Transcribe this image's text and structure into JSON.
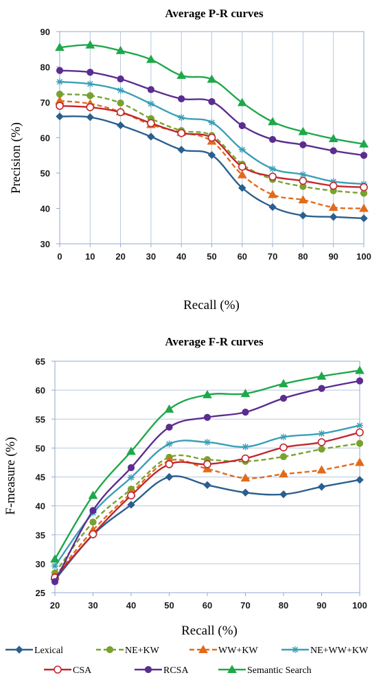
{
  "colors": {
    "lexical": "#2a5f8f",
    "ne_kw": "#78a22f",
    "ww_kw": "#e26a1c",
    "ne_ww_kw": "#3a9fb6",
    "csa": "#c0272d",
    "rcsa": "#5b2d90",
    "semantic": "#1ea84a",
    "axis": "#8faacc",
    "grid": "#b8c7dc"
  },
  "legend": [
    {
      "name": "Lexical",
      "color_key": "lexical",
      "marker": "diamond",
      "dash": false
    },
    {
      "name": "NE+KW",
      "color_key": "ne_kw",
      "marker": "circle",
      "dash": true
    },
    {
      "name": "WW+KW",
      "color_key": "ww_kw",
      "marker": "triangle",
      "dash": true
    },
    {
      "name": "NE+WW+KW",
      "color_key": "ne_ww_kw",
      "marker": "star",
      "dash": false
    },
    {
      "name": "CSA",
      "color_key": "csa",
      "marker": "open-circle",
      "dash": false
    },
    {
      "name": "RCSA",
      "color_key": "rcsa",
      "marker": "circle",
      "dash": false
    },
    {
      "name": "Semantic Search",
      "color_key": "semantic",
      "marker": "triangle",
      "dash": false
    }
  ],
  "chart_data": [
    {
      "type": "line",
      "title": "Average P-R curves",
      "xlabel": "Recall (%)",
      "ylabel": "Precision (%)",
      "xlim": [
        0,
        100
      ],
      "ylim": [
        30,
        90
      ],
      "x": [
        0,
        10,
        20,
        30,
        40,
        50,
        60,
        70,
        80,
        90,
        100
      ],
      "x_ticks": [
        "0",
        "10",
        "20",
        "30",
        "40",
        "50",
        "60",
        "70",
        "80",
        "90",
        "100"
      ],
      "y_ticks": [
        "30",
        "40",
        "50",
        "60",
        "70",
        "80",
        "90"
      ],
      "grid": "vertical",
      "series": [
        {
          "name": "Lexical",
          "values": [
            66,
            65.8,
            63.5,
            60.3,
            56.6,
            55.1,
            45.8,
            40.4,
            38,
            37.6,
            37.2
          ]
        },
        {
          "name": "NE+KW",
          "values": [
            72.3,
            71.9,
            69.8,
            65.4,
            62,
            60.6,
            52.5,
            48.2,
            46.2,
            45,
            44.3
          ]
        },
        {
          "name": "WW+KW",
          "values": [
            70.4,
            69.6,
            67.3,
            63.7,
            61.5,
            59,
            49.5,
            43.9,
            42.4,
            40.3,
            40
          ]
        },
        {
          "name": "NE+WW+KW",
          "values": [
            75.8,
            75.2,
            73.4,
            69.6,
            65.7,
            64.3,
            56.6,
            51.2,
            49.6,
            47.6,
            46.9
          ]
        },
        {
          "name": "CSA",
          "values": [
            69,
            68.6,
            67.2,
            64.1,
            61.3,
            60,
            51.8,
            49,
            47.8,
            46.4,
            46
          ]
        },
        {
          "name": "RCSA",
          "values": [
            79,
            78.5,
            76.6,
            73.6,
            71,
            70.2,
            63.4,
            59.5,
            58,
            56.3,
            55
          ]
        },
        {
          "name": "Semantic Search",
          "values": [
            85.5,
            86.2,
            84.6,
            82.1,
            77.6,
            76.5,
            69.9,
            64.5,
            61.7,
            59.7,
            58.2
          ]
        }
      ]
    },
    {
      "type": "line",
      "title": "Average F-R curves",
      "xlabel": "Recall (%)",
      "ylabel": "F-measure (%)",
      "xlim": [
        20,
        100
      ],
      "ylim": [
        25,
        65
      ],
      "x": [
        20,
        30,
        40,
        50,
        60,
        70,
        80,
        90,
        100
      ],
      "x_ticks": [
        "20",
        "30",
        "40",
        "50",
        "60",
        "70",
        "80",
        "90",
        "100"
      ],
      "y_ticks": [
        "25",
        "30",
        "35",
        "40",
        "45",
        "50",
        "55",
        "60",
        "65"
      ],
      "grid": "horizontal",
      "series": [
        {
          "name": "Lexical",
          "values": [
            27.2,
            35,
            40.2,
            45,
            43.6,
            42.3,
            42,
            43.3,
            44.5
          ]
        },
        {
          "name": "NE+KW",
          "values": [
            28.4,
            37.2,
            42.9,
            48.4,
            48,
            47.7,
            48.5,
            49.8,
            50.8
          ]
        },
        {
          "name": "WW+KW",
          "values": [
            27.8,
            35.8,
            42.2,
            47.8,
            46.4,
            44.8,
            45.5,
            46.2,
            47.5
          ]
        },
        {
          "name": "NE+WW+KW",
          "values": [
            29.6,
            38.8,
            44.9,
            50.7,
            51,
            50.2,
            51.9,
            52.5,
            53.9
          ]
        },
        {
          "name": "CSA",
          "values": [
            27.6,
            35.1,
            41.8,
            47.2,
            47.2,
            48.2,
            50.1,
            51,
            52.7
          ]
        },
        {
          "name": "RCSA",
          "values": [
            26.9,
            39.2,
            46.6,
            53.6,
            55.3,
            56.2,
            58.6,
            60.3,
            61.6
          ]
        },
        {
          "name": "Semantic Search",
          "values": [
            30.8,
            41.8,
            49.4,
            56.7,
            59.2,
            59.4,
            61.1,
            62.4,
            63.4
          ]
        }
      ]
    }
  ]
}
